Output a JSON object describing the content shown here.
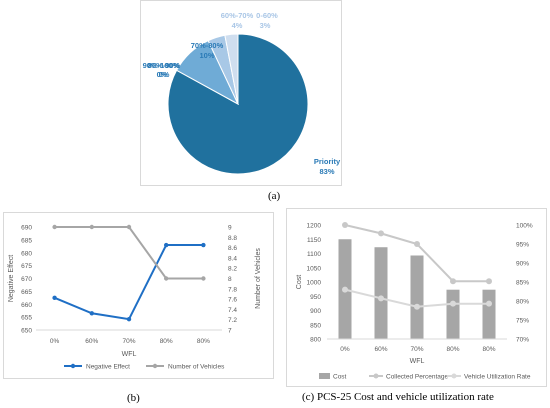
{
  "colors": {
    "pie": [
      "#20719e",
      "#6fabd6",
      "#a8c8e6",
      "#cfdeef",
      "#d8e3f1"
    ],
    "pie_label": "#2a7ab6",
    "pie_label_light": "#a9c6e6",
    "series_blue": "#1f6fc5",
    "series_gray": "#a6a6a6",
    "bar": "#a6a6a6",
    "collected": "#c8c8c8",
    "utilization": "#d9d9d9",
    "grid": "#d9d9d9",
    "tick": "#595959"
  },
  "captions": {
    "a": "(a)",
    "b": "(b)",
    "c": "(c) PCS-25 Cost and vehicle utilization rate"
  },
  "chart_data": [
    {
      "id": "a",
      "type": "pie",
      "slices": [
        {
          "label": "Priority",
          "pct_label": "83%",
          "value": 83
        },
        {
          "label": "70%-80%",
          "pct_label": "10%",
          "value": 10
        },
        {
          "label": "60%-70%",
          "pct_label": "4%",
          "value": 4
        },
        {
          "label": "0-60%",
          "pct_label": "3%",
          "value": 3
        },
        {
          "label": "90%-100%",
          "pct_label": "0%",
          "value": 0
        },
        {
          "label": "80%-90%",
          "pct_label": "0%",
          "value": 0
        }
      ]
    },
    {
      "id": "b",
      "type": "line",
      "categories": [
        "0%",
        "60%",
        "70%",
        "80%",
        "80%"
      ],
      "xlabel": "WFL",
      "ylabel": "Negative Effect",
      "y2label": "Number of Vehicles",
      "ylim": [
        650,
        690
      ],
      "yticks": [
        650,
        655,
        660,
        665,
        670,
        675,
        680,
        685,
        690
      ],
      "y2lim": [
        7,
        9
      ],
      "y2ticks": [
        "7",
        "7.2",
        "7.4",
        "7.6",
        "7.8",
        "8",
        "8.2",
        "8.4",
        "8.6",
        "8.8",
        "9"
      ],
      "series": [
        {
          "name": "Negative Effect",
          "axis": "left",
          "values": [
            662.5,
            656.5,
            654.2,
            683,
            683
          ]
        },
        {
          "name": "Number of Vehicles",
          "axis": "right",
          "values": [
            9,
            9,
            9,
            8,
            8
          ]
        }
      ],
      "legend": "bottom"
    },
    {
      "id": "c",
      "type": "bar",
      "categories": [
        "0%",
        "60%",
        "70%",
        "80%",
        "80%"
      ],
      "xlabel": "WFL",
      "ylabel": "Cost",
      "ylim": [
        800,
        1200
      ],
      "yticks": [
        800,
        850,
        900,
        950,
        1000,
        1050,
        1100,
        1150,
        1200
      ],
      "y2lim": [
        70,
        100
      ],
      "y2ticks": [
        "70%",
        "75%",
        "80%",
        "85%",
        "90%",
        "95%",
        "100%"
      ],
      "series": [
        {
          "name": "Cost",
          "axis": "left",
          "kind": "bar",
          "values": [
            1150,
            1122,
            1093,
            973,
            973
          ]
        },
        {
          "name": "Collected Percentage",
          "axis": "right",
          "kind": "line",
          "values": [
            100,
            97.8,
            95,
            85.2,
            85.2
          ]
        },
        {
          "name": "Vehicle Utilization Rate",
          "axis": "right",
          "kind": "line",
          "values": [
            83,
            80.7,
            78.5,
            79.3,
            79.3
          ]
        }
      ],
      "legend": "bottom"
    }
  ]
}
